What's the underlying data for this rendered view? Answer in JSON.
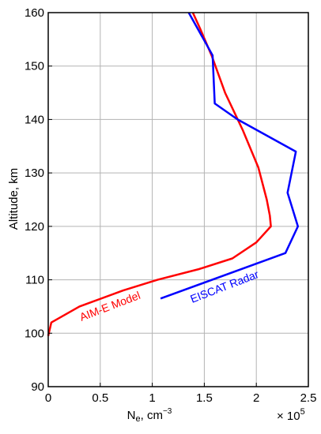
{
  "chart_data": {
    "type": "line",
    "title": "",
    "xlabel": "Ne, cm⁻³",
    "xlabel_main": "N",
    "xlabel_sub": "e",
    "xlabel_unit": ", cm",
    "xlabel_exp": "−3",
    "ylabel": "Altitude, km",
    "x_scale_multiplier": "× 10",
    "x_scale_exponent": "5",
    "xlim": [
      0,
      2.5
    ],
    "ylim": [
      90,
      160
    ],
    "x_ticks": [
      "0",
      "0.5",
      "1",
      "1.5",
      "2",
      "2.5"
    ],
    "y_ticks": [
      "90",
      "100",
      "110",
      "120",
      "130",
      "140",
      "150",
      "160"
    ],
    "grid": true,
    "series": [
      {
        "name": "AIM-E Model",
        "color": "#ff0000",
        "points": [
          [
            0.0,
            99.5
          ],
          [
            0.03,
            102
          ],
          [
            0.3,
            105
          ],
          [
            0.72,
            108
          ],
          [
            1.05,
            110
          ],
          [
            1.45,
            112
          ],
          [
            1.77,
            114
          ],
          [
            2.0,
            117
          ],
          [
            2.14,
            120
          ],
          [
            2.13,
            122
          ],
          [
            2.1,
            125
          ],
          [
            2.02,
            131
          ],
          [
            1.87,
            138
          ],
          [
            1.7,
            145
          ],
          [
            1.57,
            152
          ],
          [
            1.46,
            157
          ],
          [
            1.39,
            160
          ]
        ]
      },
      {
        "name": "EISCAT Radar",
        "color": "#0000ff",
        "points": [
          [
            1.08,
            106.5
          ],
          [
            2.28,
            115
          ],
          [
            2.4,
            120
          ],
          [
            2.3,
            126.3
          ],
          [
            2.38,
            134
          ],
          [
            1.82,
            140
          ],
          [
            1.6,
            143
          ],
          [
            1.58,
            152
          ],
          [
            1.35,
            160
          ]
        ]
      }
    ]
  }
}
